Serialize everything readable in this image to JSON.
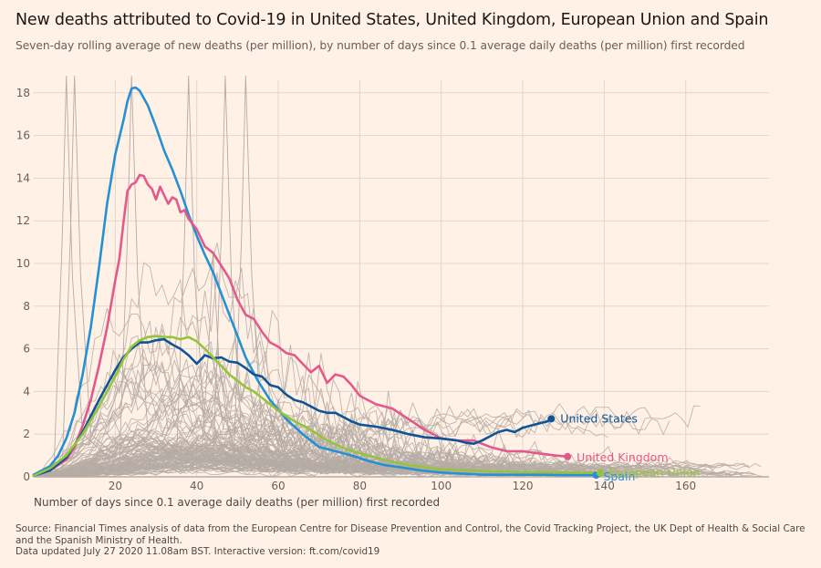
{
  "header": {
    "title": "New deaths attributed to Covid-19 in United States, United Kingdom, European Union and Spain",
    "subtitle": "Seven-day rolling average of new deaths (per million), by number of days since 0.1 average daily deaths (per million) first recorded"
  },
  "footer": {
    "source": "Source: Financial Times analysis of data from the European Centre for Disease Prevention and Control, the Covid Tracking Project, the UK Dept of Health & Social Care and the Spanish Ministry of Health.",
    "updated": "Data updated July 27 2020 11.08am BST. Interactive version: ft.com/covid19"
  },
  "colors": {
    "background": "#fff1e5",
    "grid": "#e3d5cb",
    "others": "#b5aba5",
    "united_states": "#0f5499",
    "united_kingdom": "#e4598b",
    "european_union": "#96c33e",
    "spain": "#2590d3"
  },
  "chart_data": {
    "type": "line",
    "title": "New deaths attributed to Covid-19 in United States, United Kingdom, European Union and Spain",
    "subtitle": "Seven-day rolling average of new deaths (per million), by number of days since 0.1 average daily deaths (per million) first recorded",
    "xlabel": "Number of days since 0.1 average daily deaths (per million) first recorded",
    "ylabel": "",
    "xlim": [
      0,
      180
    ],
    "ylim": [
      0,
      18.5
    ],
    "x_ticks": [
      20,
      40,
      60,
      80,
      100,
      120,
      140,
      160
    ],
    "y_ticks": [
      0,
      2,
      4,
      6,
      8,
      10,
      12,
      14,
      16,
      18
    ],
    "grid": true,
    "legend": "direct labels at line ends (right)",
    "series": [
      {
        "name": "Spain",
        "key": "spain",
        "x": [
          0,
          2,
          4,
          6,
          8,
          10,
          12,
          14,
          16,
          18,
          20,
          22,
          23,
          24,
          25,
          26,
          28,
          30,
          32,
          34,
          36,
          38,
          40,
          42,
          44,
          46,
          48,
          50,
          52,
          55,
          58,
          62,
          66,
          70,
          74,
          78,
          82,
          86,
          90,
          95,
          100,
          105,
          110,
          115,
          120,
          125,
          130,
          135,
          138
        ],
        "values": [
          0.1,
          0.3,
          0.5,
          1.0,
          1.8,
          3.0,
          4.8,
          7.0,
          9.8,
          12.8,
          15.1,
          16.7,
          17.6,
          18.2,
          18.25,
          18.1,
          17.4,
          16.4,
          15.3,
          14.4,
          13.4,
          12.3,
          11.3,
          10.4,
          9.6,
          8.6,
          7.6,
          6.6,
          5.6,
          4.5,
          3.6,
          2.7,
          2.0,
          1.4,
          1.2,
          1.0,
          0.75,
          0.55,
          0.45,
          0.3,
          0.2,
          0.15,
          0.1,
          0.1,
          0.1,
          0.1,
          0.08,
          0.08,
          0.08
        ]
      },
      {
        "name": "United Kingdom",
        "key": "united_kingdom",
        "x": [
          0,
          4,
          8,
          10,
          12,
          14,
          16,
          18,
          20,
          21,
          22,
          23,
          24,
          25,
          26,
          27,
          28,
          29,
          30,
          31,
          32,
          33,
          34,
          35,
          36,
          37,
          38,
          40,
          42,
          44,
          46,
          48,
          50,
          52,
          54,
          56,
          58,
          60,
          62,
          64,
          66,
          68,
          70,
          72,
          74,
          76,
          78,
          80,
          84,
          88,
          92,
          96,
          100,
          104,
          108,
          112,
          116,
          120,
          124,
          128,
          131
        ],
        "values": [
          0.05,
          0.3,
          0.8,
          1.4,
          2.4,
          3.6,
          5.2,
          7.0,
          9.2,
          10.2,
          11.9,
          13.4,
          13.7,
          13.8,
          14.15,
          14.1,
          13.7,
          13.5,
          13.0,
          13.6,
          13.2,
          12.8,
          13.1,
          13.0,
          12.4,
          12.5,
          12.1,
          11.6,
          10.8,
          10.5,
          9.9,
          9.3,
          8.3,
          7.6,
          7.4,
          6.8,
          6.3,
          6.1,
          5.8,
          5.7,
          5.3,
          4.9,
          5.2,
          4.4,
          4.8,
          4.7,
          4.3,
          3.8,
          3.4,
          3.2,
          2.7,
          2.2,
          1.8,
          1.7,
          1.7,
          1.4,
          1.2,
          1.2,
          1.1,
          1.0,
          0.95
        ]
      },
      {
        "name": "United States",
        "key": "united_states",
        "x": [
          0,
          4,
          8,
          12,
          16,
          20,
          22,
          24,
          26,
          28,
          30,
          32,
          34,
          36,
          38,
          40,
          42,
          44,
          46,
          48,
          50,
          52,
          54,
          56,
          58,
          60,
          62,
          64,
          66,
          68,
          70,
          72,
          74,
          76,
          78,
          80,
          84,
          88,
          92,
          96,
          100,
          104,
          106,
          108,
          110,
          112,
          114,
          116,
          118,
          120,
          122,
          124,
          126,
          127
        ],
        "values": [
          0.05,
          0.3,
          0.9,
          2.1,
          3.6,
          5.0,
          5.6,
          6.0,
          6.3,
          6.3,
          6.4,
          6.45,
          6.2,
          6.0,
          5.7,
          5.3,
          5.7,
          5.55,
          5.6,
          5.4,
          5.35,
          5.1,
          4.8,
          4.7,
          4.3,
          4.2,
          3.85,
          3.6,
          3.5,
          3.3,
          3.1,
          3.0,
          3.0,
          2.8,
          2.6,
          2.45,
          2.35,
          2.2,
          2.0,
          1.85,
          1.8,
          1.7,
          1.6,
          1.55,
          1.7,
          1.9,
          2.1,
          2.2,
          2.1,
          2.3,
          2.4,
          2.5,
          2.6,
          2.72
        ]
      },
      {
        "name": "European Union",
        "key": "european_union",
        "x": [
          0,
          4,
          8,
          12,
          16,
          20,
          22,
          24,
          26,
          28,
          30,
          32,
          34,
          36,
          38,
          40,
          42,
          44,
          46,
          48,
          50,
          52,
          54,
          56,
          58,
          60,
          64,
          68,
          72,
          76,
          80,
          84,
          88,
          92,
          96,
          100,
          110,
          120,
          130,
          139
        ],
        "values": [
          0.05,
          0.4,
          1.0,
          2.0,
          3.3,
          4.7,
          5.5,
          6.1,
          6.4,
          6.55,
          6.6,
          6.55,
          6.55,
          6.45,
          6.55,
          6.35,
          6.0,
          5.6,
          5.2,
          4.8,
          4.5,
          4.2,
          4.0,
          3.7,
          3.4,
          3.1,
          2.6,
          2.2,
          1.7,
          1.35,
          1.1,
          0.9,
          0.7,
          0.55,
          0.45,
          0.35,
          0.27,
          0.22,
          0.2,
          0.19
        ]
      }
    ],
    "other_countries_note": "Many thin grey lines show other countries for context (not individually labelled)"
  }
}
